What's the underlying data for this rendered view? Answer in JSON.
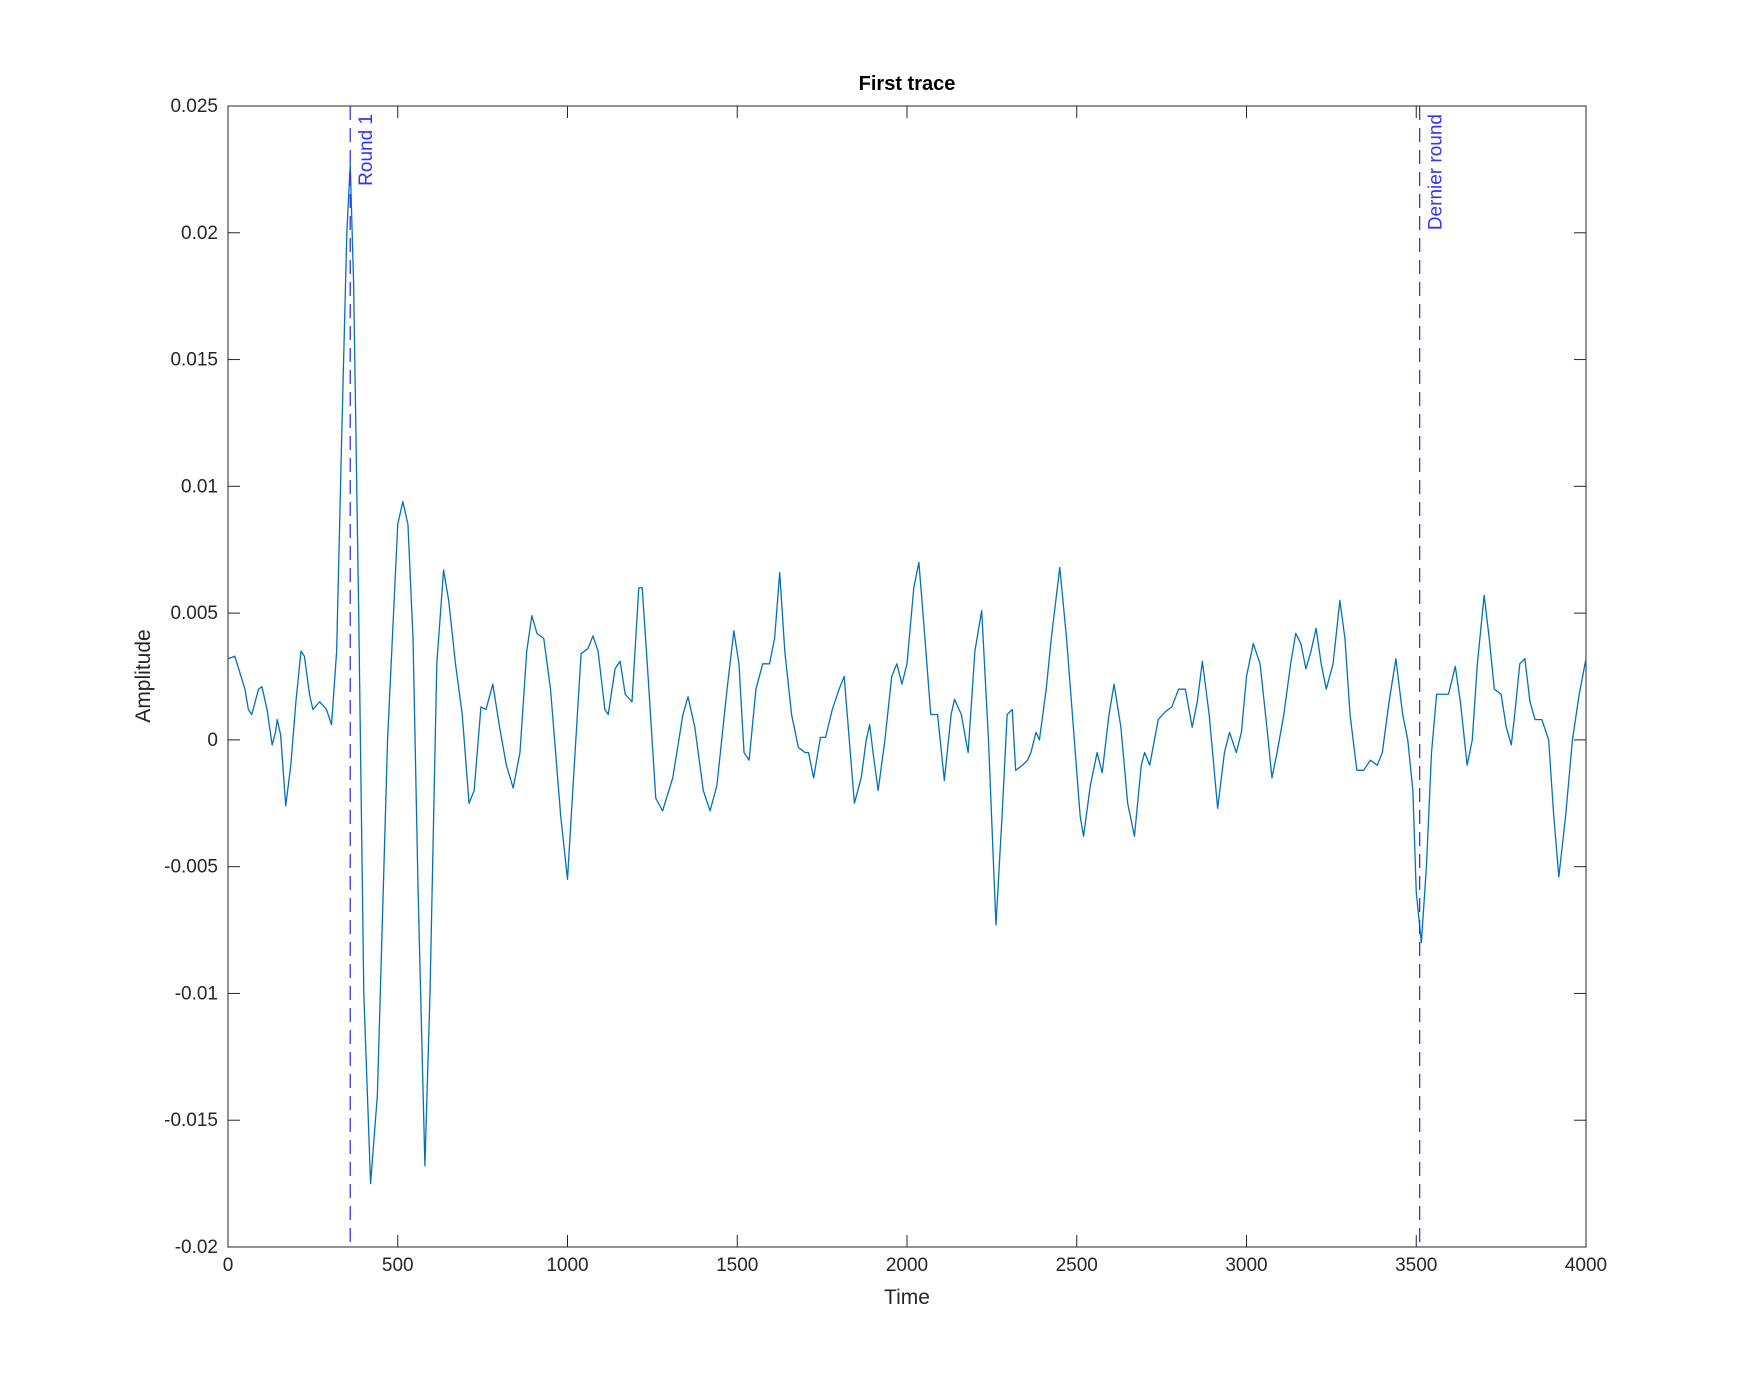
{
  "chart_data": {
    "type": "line",
    "title": "First trace",
    "xlabel": "Time",
    "ylabel": "Amplitude",
    "xlim": [
      0,
      4000
    ],
    "xticks": [
      0,
      500,
      1000,
      1500,
      2000,
      2500,
      3000,
      3500,
      4000
    ],
    "ylim": [
      -0.02,
      0.025
    ],
    "yticks": [
      -0.02,
      -0.015,
      -0.01,
      -0.005,
      0,
      0.005,
      0.01,
      0.015,
      0.02,
      0.025
    ],
    "grid": false,
    "annotations": [
      {
        "x": 360,
        "text": "Round 1",
        "color": "#3333ff"
      },
      {
        "x": 3510,
        "text": "Dernier round",
        "color": "#3333ff"
      }
    ],
    "x": [
      0,
      20,
      50,
      60,
      70,
      90,
      100,
      115,
      130,
      140,
      145,
      155,
      170,
      185,
      200,
      215,
      225,
      240,
      250,
      270,
      290,
      305,
      320,
      335,
      350,
      360,
      370,
      385,
      400,
      420,
      440,
      470,
      500,
      515,
      530,
      545,
      560,
      580,
      595,
      615,
      635,
      650,
      670,
      690,
      710,
      725,
      745,
      760,
      780,
      800,
      820,
      840,
      860,
      880,
      895,
      910,
      930,
      950,
      980,
      1000,
      1020,
      1040,
      1060,
      1075,
      1090,
      1110,
      1120,
      1140,
      1155,
      1170,
      1190,
      1210,
      1220,
      1235,
      1260,
      1280,
      1310,
      1340,
      1355,
      1375,
      1400,
      1420,
      1440,
      1470,
      1490,
      1505,
      1520,
      1535,
      1555,
      1575,
      1595,
      1610,
      1625,
      1640,
      1660,
      1680,
      1700,
      1710,
      1725,
      1745,
      1760,
      1780,
      1800,
      1815,
      1830,
      1845,
      1865,
      1880,
      1890,
      1900,
      1915,
      1935,
      1955,
      1970,
      1985,
      2000,
      2020,
      2035,
      2050,
      2070,
      2090,
      2110,
      2130,
      2140,
      2160,
      2180,
      2200,
      2220,
      2240,
      2262,
      2280,
      2295,
      2310,
      2320,
      2340,
      2355,
      2365,
      2380,
      2390,
      2410,
      2425,
      2450,
      2470,
      2490,
      2510,
      2520,
      2540,
      2560,
      2575,
      2595,
      2610,
      2630,
      2650,
      2670,
      2690,
      2700,
      2715,
      2740,
      2760,
      2780,
      2800,
      2820,
      2840,
      2855,
      2870,
      2890,
      2915,
      2935,
      2950,
      2970,
      2985,
      3000,
      3020,
      3040,
      3060,
      3075,
      3090,
      3110,
      3130,
      3145,
      3160,
      3175,
      3190,
      3205,
      3220,
      3235,
      3255,
      3275,
      3290,
      3305,
      3325,
      3345,
      3365,
      3385,
      3400,
      3420,
      3440,
      3460,
      3475,
      3490,
      3500,
      3515,
      3530,
      3545,
      3560,
      3575,
      3595,
      3615,
      3630,
      3650,
      3665,
      3680,
      3700,
      3715,
      3730,
      3750,
      3765,
      3780,
      3790,
      3805,
      3820,
      3835,
      3850,
      3870,
      3890,
      3905,
      3920,
      3940,
      3960,
      3980,
      4000
    ],
    "series": [
      {
        "name": "First trace",
        "color": "#0072bd",
        "values": [
          0.0032,
          0.0033,
          0.002,
          0.0012,
          0.001,
          0.002,
          0.0021,
          0.0012,
          -0.0002,
          0.0003,
          0.0008,
          0.0002,
          -0.0026,
          -0.001,
          0.0015,
          0.0035,
          0.0033,
          0.0018,
          0.0012,
          0.0015,
          0.0012,
          0.0006,
          0.0035,
          0.012,
          0.02,
          0.0227,
          0.018,
          0.005,
          -0.01,
          -0.0175,
          -0.014,
          0,
          0.0085,
          0.0094,
          0.0085,
          0.004,
          -0.006,
          -0.0168,
          -0.01,
          0.003,
          0.0067,
          0.0055,
          0.003,
          0.001,
          -0.0025,
          -0.002,
          0.0013,
          0.0012,
          0.0022,
          0.0005,
          -0.001,
          -0.0019,
          -0.0005,
          0.0035,
          0.0049,
          0.0042,
          0.004,
          0.002,
          -0.003,
          -0.0055,
          -0.001,
          0.0034,
          0.0036,
          0.0041,
          0.0035,
          0.0012,
          0.001,
          0.0028,
          0.0031,
          0.0018,
          0.0015,
          0.006,
          0.006,
          0.003,
          -0.0023,
          -0.0028,
          -0.0015,
          0.001,
          0.0017,
          0.0005,
          -0.002,
          -0.0028,
          -0.0018,
          0.002,
          0.0043,
          0.003,
          -0.0005,
          -0.0008,
          0.002,
          0.003,
          0.003,
          0.004,
          0.0066,
          0.0035,
          0.001,
          -0.0003,
          -0.0005,
          -0.0005,
          -0.0015,
          0.0001,
          0.0001,
          0.0012,
          0.002,
          0.0025,
          0,
          -0.0025,
          -0.0015,
          0,
          0.0006,
          -0.0005,
          -0.002,
          0,
          0.0025,
          0.003,
          0.0022,
          0.003,
          0.006,
          0.007,
          0.0045,
          0.001,
          0.001,
          -0.0016,
          0.001,
          0.0016,
          0.001,
          -0.0005,
          0.0035,
          0.0051,
          0,
          -0.0073,
          -0.003,
          0.001,
          0.0012,
          -0.0012,
          -0.001,
          -0.0008,
          -0.0005,
          0.0003,
          0,
          0.002,
          0.004,
          0.0068,
          0.004,
          0.0005,
          -0.003,
          -0.0038,
          -0.0018,
          -0.0005,
          -0.0013,
          0.001,
          0.0022,
          0.0005,
          -0.0025,
          -0.0038,
          -0.001,
          -0.0005,
          -0.001,
          0.0008,
          0.0011,
          0.0013,
          0.002,
          0.002,
          0.0005,
          0.0015,
          0.0031,
          0.001,
          -0.0027,
          -0.0005,
          0.0003,
          -0.0005,
          0.0003,
          0.0025,
          0.0038,
          0.003,
          0.0005,
          -0.0015,
          -0.0005,
          0.001,
          0.003,
          0.0042,
          0.0038,
          0.0028,
          0.0035,
          0.0044,
          0.003,
          0.002,
          0.003,
          0.0055,
          0.004,
          0.001,
          -0.0012,
          -0.0012,
          -0.0008,
          -0.001,
          -0.0005,
          0.0015,
          0.0032,
          0.001,
          0,
          -0.002,
          -0.006,
          -0.008,
          -0.005,
          -0.0005,
          0.0018,
          0.0018,
          0.0018,
          0.0029,
          0.0015,
          -0.001,
          0,
          0.003,
          0.0057,
          0.004,
          0.002,
          0.0018,
          0.0005,
          -0.0002,
          0.001,
          0.003,
          0.0032,
          0.0015,
          0.0008,
          0.0008,
          0,
          -0.003,
          -0.0054,
          -0.003,
          0,
          0.0018,
          0.0032
        ]
      }
    ]
  }
}
